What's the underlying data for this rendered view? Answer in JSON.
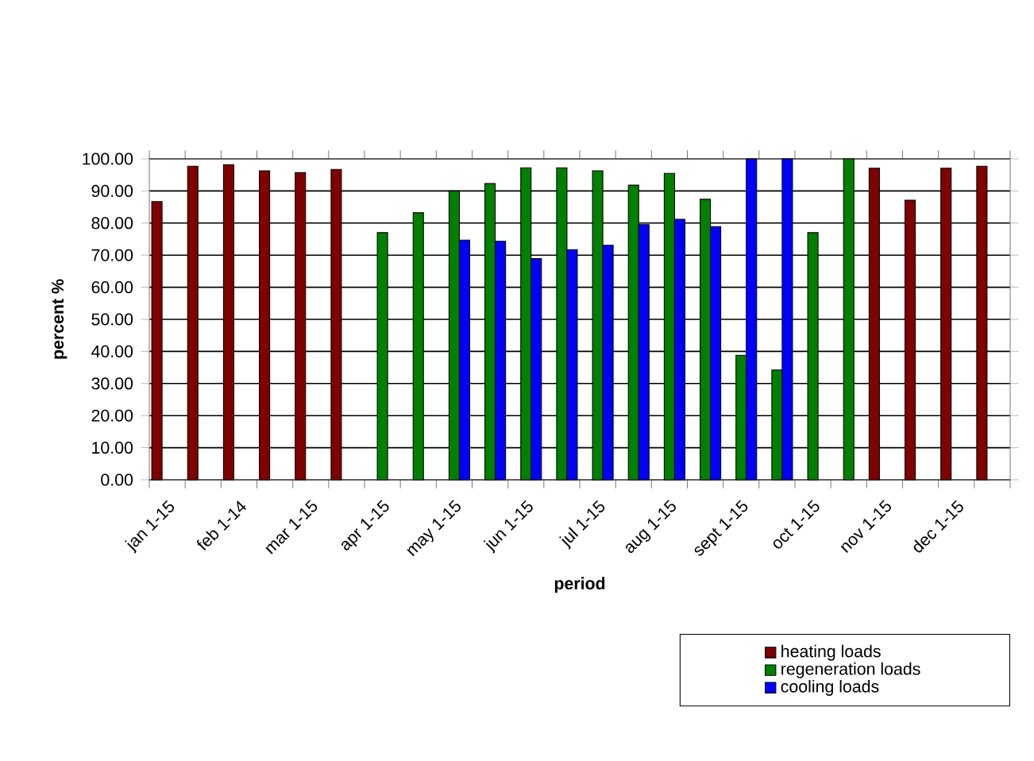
{
  "chart_data": {
    "type": "bar",
    "xlabel": "period",
    "ylabel": "percent %",
    "categories": [
      "jan 1-15",
      null,
      "feb 1-14",
      null,
      "mar 1-15",
      null,
      "apr 1-15",
      null,
      "may 1-15",
      null,
      "jun 1-15",
      null,
      "jul 1-15",
      null,
      "aug 1-15",
      null,
      "sept 1-15",
      null,
      "oct 1-15",
      null,
      "nov 1-15",
      null,
      "dec 1-15",
      null
    ],
    "series": [
      {
        "name": "heating loads",
        "color": "#800000",
        "values": [
          86.7,
          97.7,
          98.2,
          96.3,
          95.7,
          96.7,
          null,
          null,
          null,
          null,
          null,
          null,
          null,
          null,
          null,
          null,
          null,
          null,
          null,
          null,
          97.1,
          87.1,
          97.1,
          97.7
        ]
      },
      {
        "name": "regeneration loads",
        "color": "#008000",
        "values": [
          null,
          null,
          null,
          null,
          null,
          null,
          77.0,
          83.2,
          90.0,
          92.3,
          97.2,
          97.2,
          96.3,
          91.8,
          95.5,
          87.4,
          38.8,
          34.2,
          77.0,
          100,
          null,
          null,
          null,
          null
        ]
      },
      {
        "name": "cooling loads",
        "color": "#0000ff",
        "values": [
          null,
          null,
          null,
          null,
          null,
          null,
          null,
          null,
          74.7,
          74.3,
          68.9,
          71.7,
          73.1,
          79.5,
          81.2,
          78.9,
          100,
          100,
          null,
          null,
          null,
          null,
          null,
          null
        ]
      }
    ],
    "ylim": [
      0,
      100
    ],
    "yticks": [
      {
        "value": 0,
        "label": "0.00"
      },
      {
        "value": 10,
        "label": "10.00"
      },
      {
        "value": 20,
        "label": "20.00"
      },
      {
        "value": 30,
        "label": "30.00"
      },
      {
        "value": 40,
        "label": "40.00"
      },
      {
        "value": 50,
        "label": "50.00"
      },
      {
        "value": 60,
        "label": "60.00"
      },
      {
        "value": 70,
        "label": "70.00"
      },
      {
        "value": 80,
        "label": "80.00"
      },
      {
        "value": 90,
        "label": "90.00"
      },
      {
        "value": 100,
        "label": "100.00"
      }
    ],
    "grid": "y",
    "legend": "bottom right"
  }
}
